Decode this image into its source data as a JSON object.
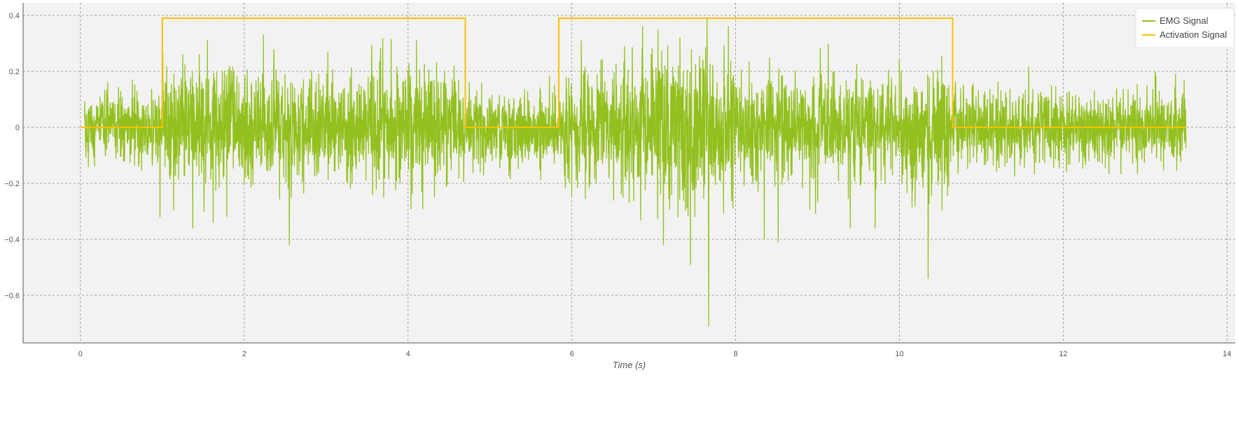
{
  "chart_data": {
    "type": "line",
    "title": "",
    "xlabel": "Time (s)",
    "ylabel": "",
    "xlim": [
      -0.7,
      14.1
    ],
    "ylim": [
      -0.77,
      0.445
    ],
    "x_ticks": [
      0,
      2,
      4,
      6,
      8,
      10,
      12,
      14
    ],
    "y_ticks": [
      -0.6,
      -0.4,
      -0.2,
      0,
      0.2,
      0.4
    ],
    "x_tick_labels": [
      "0",
      "2",
      "4",
      "6",
      "8",
      "10",
      "12",
      "14"
    ],
    "y_tick_labels": [
      "−0.6",
      "−0.4",
      "−0.2",
      "0",
      "0.2",
      "0.4"
    ],
    "grid": true,
    "legend_position": "top-right",
    "colors": {
      "emg": "#93c01f",
      "activation": "#ffc000",
      "plot_background": "#f2f2f2"
    },
    "series": [
      {
        "name": "EMG Signal",
        "kind": "emg_noise",
        "x_range": [
          0.05,
          13.5
        ],
        "baseline_std": 0.065,
        "active_std": 0.1,
        "extremes": [
          {
            "x": 1.25,
            "y": 0.26
          },
          {
            "x": 2.55,
            "y": -0.42
          },
          {
            "x": 7.05,
            "y": 0.35
          },
          {
            "x": 7.12,
            "y": -0.42
          },
          {
            "x": 7.32,
            "y": 0.32
          },
          {
            "x": 7.45,
            "y": -0.49
          },
          {
            "x": 7.65,
            "y": 0.39
          },
          {
            "x": 7.67,
            "y": -0.71
          },
          {
            "x": 8.35,
            "y": -0.4
          },
          {
            "x": 8.52,
            "y": -0.41
          },
          {
            "x": 10.35,
            "y": -0.54
          },
          {
            "x": 10.0,
            "y": 0.24
          },
          {
            "x": 1.62,
            "y": -0.34
          },
          {
            "x": 0.97,
            "y": -0.32
          }
        ]
      },
      {
        "name": "Activation Signal",
        "kind": "step",
        "x": [
          0,
          1.0,
          1.0,
          4.7,
          4.7,
          5.84,
          5.84,
          10.65,
          10.65,
          13.5
        ],
        "y": [
          0,
          0,
          0.39,
          0.39,
          0,
          0,
          0.39,
          0.39,
          0,
          0
        ]
      }
    ],
    "active_intervals": [
      [
        1.0,
        4.7
      ],
      [
        5.84,
        10.65
      ]
    ]
  }
}
